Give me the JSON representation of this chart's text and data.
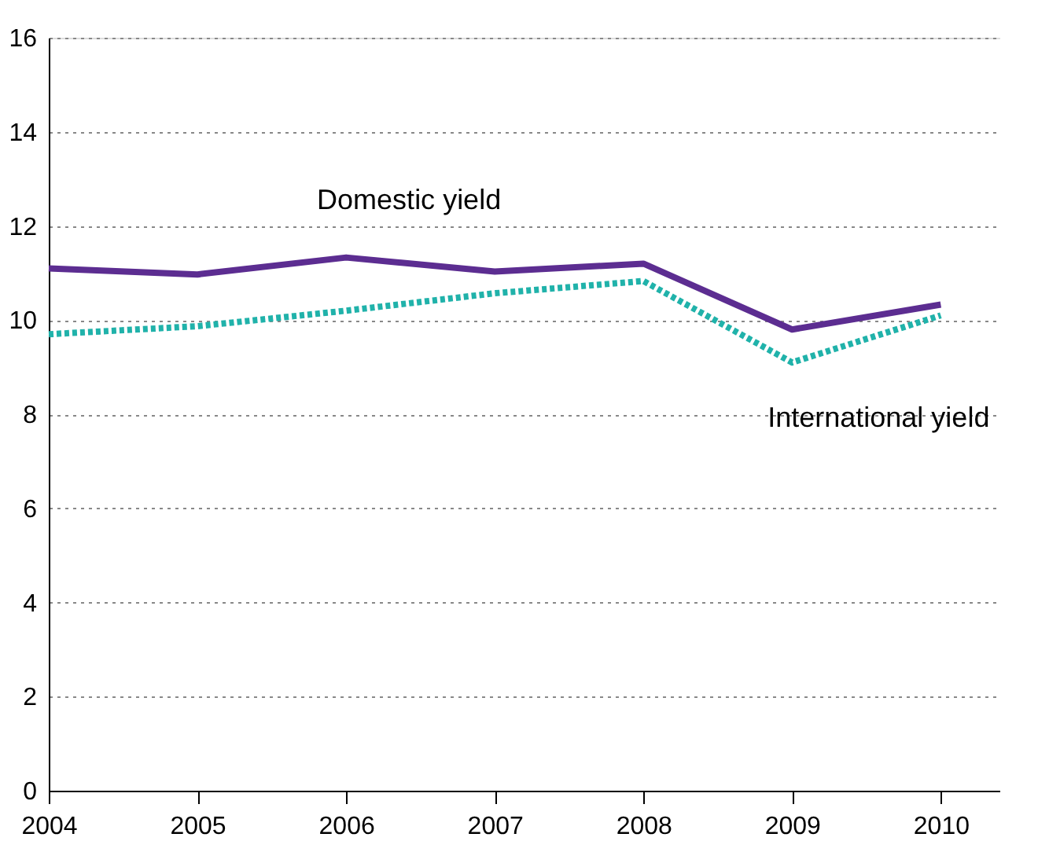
{
  "chart_data": {
    "type": "line",
    "x": [
      2004,
      2005,
      2006,
      2007,
      2008,
      2009,
      2010
    ],
    "series": [
      {
        "name": "Domestic yield",
        "color": "#5c2d91",
        "line_style": "solid",
        "values": [
          11.1,
          10.97,
          11.33,
          11.03,
          11.2,
          9.8,
          10.33
        ]
      },
      {
        "name": "International yield",
        "color": "#20b2aa",
        "line_style": "dotted",
        "values": [
          9.7,
          9.87,
          10.2,
          10.57,
          10.83,
          9.1,
          10.1
        ]
      }
    ],
    "xlim": [
      2004,
      2010.4
    ],
    "xticks": [
      2004,
      2005,
      2006,
      2007,
      2008,
      2009,
      2010
    ],
    "ylim": [
      0,
      16
    ],
    "yticks": [
      0,
      2,
      4,
      6,
      8,
      10,
      12,
      14,
      16
    ],
    "grid": "y",
    "legend": false,
    "marker": "none"
  }
}
